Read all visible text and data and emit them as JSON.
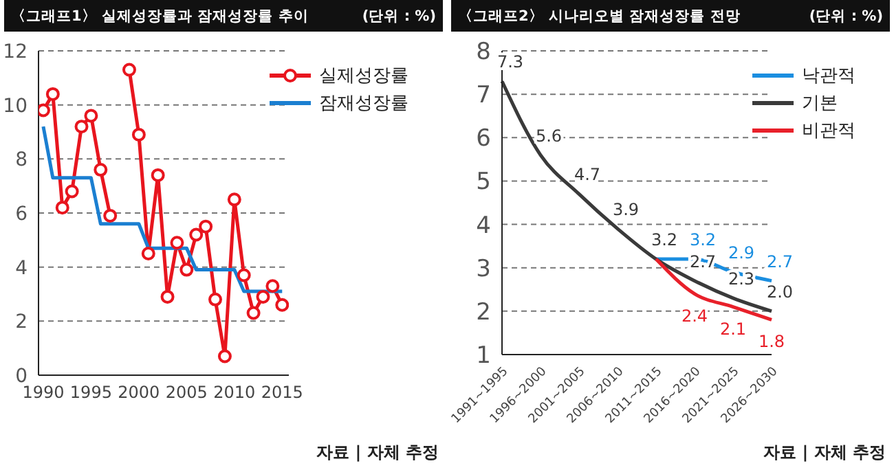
{
  "chart_data": [
    {
      "type": "line",
      "title": "〈그래프1〉 실제성장률과 잠재성장률 추이",
      "annotations": [
        "(단위 : %)",
        "자료 | 자체 추정"
      ],
      "x": [
        1990,
        1991,
        1992,
        1993,
        1994,
        1995,
        1996,
        1997,
        1998,
        1999,
        2000,
        2001,
        2002,
        2003,
        2004,
        2005,
        2006,
        2007,
        2008,
        2009,
        2010,
        2011,
        2012,
        2013,
        2014,
        2015
      ],
      "series": [
        {
          "name": "실제성장률",
          "color": "#e8151e",
          "marker": "circle",
          "values": [
            9.8,
            10.4,
            6.2,
            6.8,
            9.2,
            9.6,
            7.6,
            5.9,
            null,
            11.3,
            8.9,
            4.5,
            7.4,
            2.9,
            4.9,
            3.9,
            5.2,
            5.5,
            2.8,
            0.7,
            6.5,
            3.7,
            2.3,
            2.9,
            3.3,
            2.6
          ]
        },
        {
          "name": "잠재성장률",
          "color": "#1b7fd1",
          "marker": "none",
          "values": [
            9.2,
            7.3,
            7.3,
            7.3,
            7.3,
            7.3,
            5.6,
            5.6,
            5.6,
            5.6,
            5.6,
            4.7,
            4.7,
            4.7,
            4.7,
            4.7,
            3.9,
            3.9,
            3.9,
            3.9,
            3.9,
            3.1,
            3.1,
            3.1,
            3.1,
            3.1
          ]
        }
      ],
      "xlim": [
        1989.5,
        2015.7
      ],
      "xticks": [
        1990,
        1995,
        2000,
        2005,
        2010,
        2015
      ],
      "ylim": [
        0,
        12
      ],
      "yticks": [
        0,
        2,
        4,
        6,
        8,
        10,
        12
      ],
      "grid": "y",
      "legend": "top right"
    },
    {
      "type": "line",
      "title": "〈그래프2〉 시나리오별 잠재성장률 전망",
      "annotations": [
        "(단위 : %)",
        "자료 | 자체 추정"
      ],
      "categories": [
        "1991~1995",
        "1996~2000",
        "2001~2005",
        "2006~2010",
        "2011~2015",
        "2016~2020",
        "2021~2025",
        "2026~2030"
      ],
      "series": [
        {
          "name": "낙관적",
          "color": "#1a8ee0",
          "values": [
            null,
            null,
            null,
            null,
            3.2,
            3.2,
            2.9,
            2.7
          ],
          "value_labels": [
            null,
            null,
            null,
            null,
            null,
            "3.2",
            "2.9",
            "2.7"
          ]
        },
        {
          "name": "기본",
          "color": "#3a3a3a",
          "values": [
            7.3,
            5.6,
            4.7,
            3.9,
            3.2,
            2.7,
            2.3,
            2.0
          ],
          "value_labels": [
            "7.3",
            "5.6",
            "4.7",
            "3.9",
            "3.2",
            "2.7",
            "2.3",
            "2.0"
          ]
        },
        {
          "name": "비관적",
          "color": "#e8202a",
          "values": [
            null,
            null,
            null,
            null,
            3.2,
            2.4,
            2.1,
            1.8
          ],
          "value_labels": [
            null,
            null,
            null,
            null,
            null,
            "2.4",
            "2.1",
            "1.8"
          ]
        }
      ],
      "ylim": [
        1,
        8
      ],
      "yticks": [
        1,
        2,
        3,
        4,
        5,
        6,
        7,
        8
      ],
      "grid": "y",
      "legend": "top right"
    }
  ]
}
